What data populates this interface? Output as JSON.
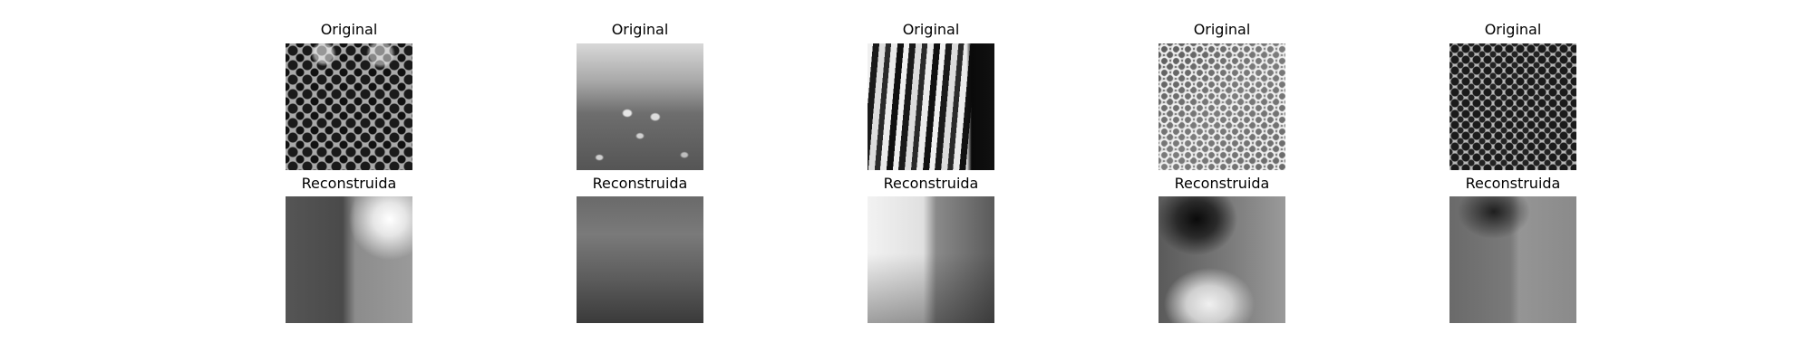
{
  "figure": {
    "rows": [
      {
        "title": "Original",
        "panels": [
          {
            "title": "Original"
          },
          {
            "title": "Original"
          },
          {
            "title": "Original"
          },
          {
            "title": "Original"
          },
          {
            "title": "Original"
          }
        ]
      },
      {
        "title": "Reconstruida",
        "panels": [
          {
            "title": "Reconstruida"
          },
          {
            "title": "Reconstruida"
          },
          {
            "title": "Reconstruida"
          },
          {
            "title": "Reconstruida"
          },
          {
            "title": "Reconstruida"
          }
        ]
      }
    ],
    "colors": {
      "background": "#ffffff",
      "text": "#000000"
    }
  }
}
